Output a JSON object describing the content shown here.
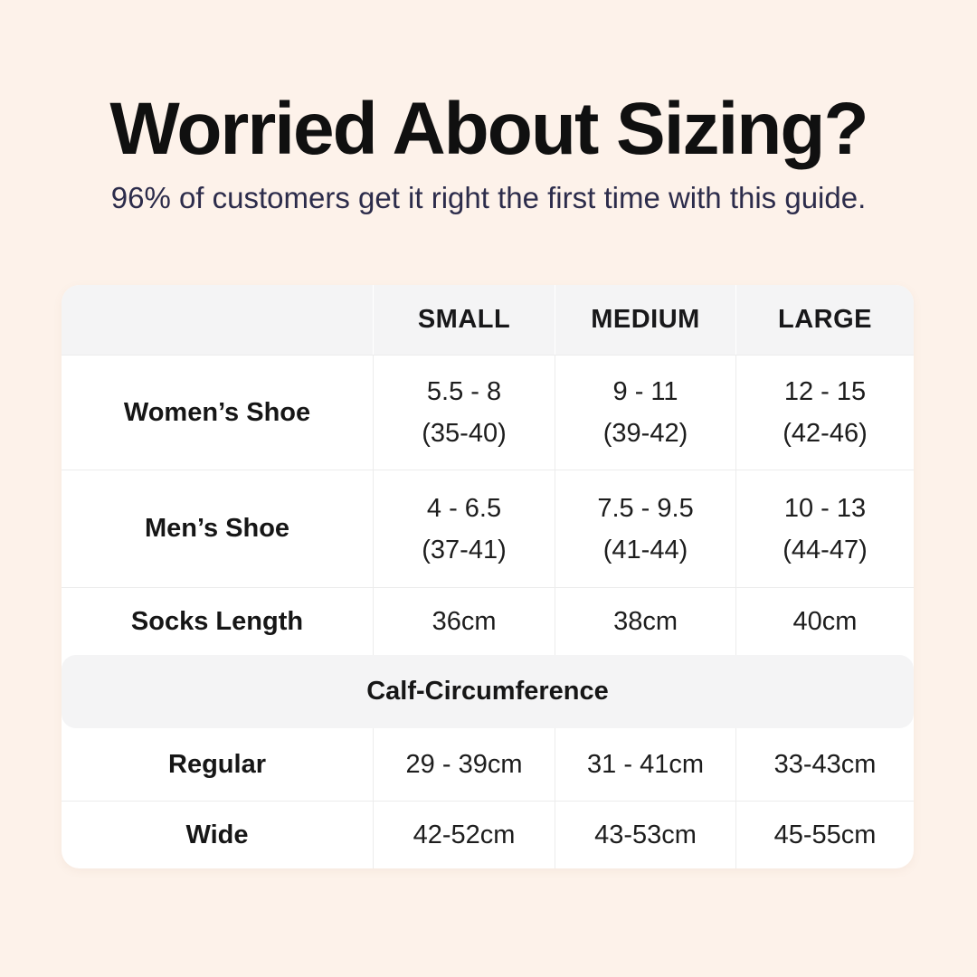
{
  "page": {
    "background_color": "#fdf2ea",
    "table_background": "#ffffff",
    "band_background": "#f4f4f5",
    "border_color": "#ececec",
    "title_color": "#101010",
    "subtitle_color": "#2c2c4b"
  },
  "header": {
    "title": "Worried About Sizing?",
    "subtitle": "96% of customers get it right the first time with this guide."
  },
  "table": {
    "columns": [
      "",
      "SMALL",
      "MEDIUM",
      "LARGE"
    ],
    "rows": [
      {
        "label": "Women’s Shoe",
        "values": [
          {
            "line1": "5.5 - 8",
            "line2": "(35-40)"
          },
          {
            "line1": "9 - 11",
            "line2": "(39-42)"
          },
          {
            "line1": "12 - 15",
            "line2": "(42-46)"
          }
        ]
      },
      {
        "label": "Men’s Shoe",
        "values": [
          {
            "line1": "4 - 6.5",
            "line2": "(37-41)"
          },
          {
            "line1": "7.5 - 9.5",
            "line2": "(41-44)"
          },
          {
            "line1": "10 - 13",
            "line2": "(44-47)"
          }
        ]
      },
      {
        "label": "Socks Length",
        "values": [
          {
            "line1": "36cm",
            "line2": ""
          },
          {
            "line1": "38cm",
            "line2": ""
          },
          {
            "line1": "40cm",
            "line2": ""
          }
        ]
      }
    ],
    "section_header": "Calf-Circumference",
    "section_rows": [
      {
        "label": "Regular",
        "values": [
          {
            "line1": "29 - 39cm"
          },
          {
            "line1": "31 - 41cm"
          },
          {
            "line1": "33-43cm"
          }
        ]
      },
      {
        "label": "Wide",
        "values": [
          {
            "line1": "42-52cm"
          },
          {
            "line1": "43-53cm"
          },
          {
            "line1": "45-55cm"
          }
        ]
      }
    ]
  },
  "chart_data": {
    "type": "table",
    "title": "Worried About Sizing?",
    "subtitle": "96% of customers get it right the first time with this guide.",
    "columns": [
      "",
      "SMALL",
      "MEDIUM",
      "LARGE"
    ],
    "rows": [
      [
        "Women’s Shoe",
        "5.5 - 8 (35-40)",
        "9 - 11 (39-42)",
        "12 - 15 (42-46)"
      ],
      [
        "Men’s Shoe",
        "4 - 6.5 (37-41)",
        "7.5 - 9.5 (41-44)",
        "10 - 13 (44-47)"
      ],
      [
        "Socks Length",
        "36cm",
        "38cm",
        "40cm"
      ],
      [
        "Calf-Circumference",
        "",
        "",
        ""
      ],
      [
        "Regular",
        "29 - 39cm",
        "31 - 41cm",
        "33-43cm"
      ],
      [
        "Wide",
        "42-52cm",
        "43-53cm",
        "45-55cm"
      ]
    ],
    "layout_hints": {
      "section_header_row_index": 3,
      "header_row_shaded": true,
      "grid": "light-gray separators, rounded white card"
    }
  }
}
